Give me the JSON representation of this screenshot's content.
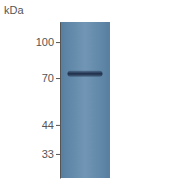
{
  "chart_data": {
    "type": "blot",
    "y_label": "kDa",
    "ylim": [
      26,
      122
    ],
    "yticks": [
      33,
      44,
      70,
      100
    ],
    "log": "y",
    "categories": [
      null
    ],
    "values": [
      73
    ],
    "color": "#1e2d48"
  }
}
